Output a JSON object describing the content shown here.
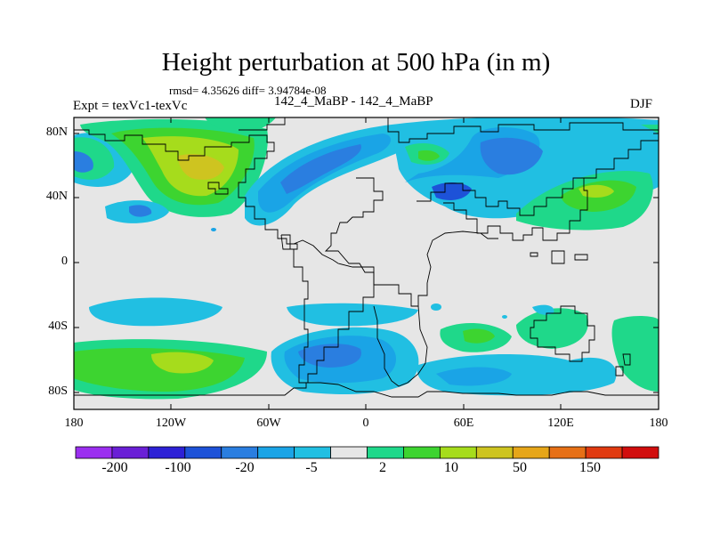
{
  "title": "Height perturbation at 500 hPa (in m)",
  "stats": "rmsd= 4.35626 diff= 3.94784e-08",
  "expt_label": "Expt = texVc1-texVc",
  "runs_label": "142_4_MaBP - 142_4_MaBP",
  "season": "DJF",
  "lat_labels": [
    "80N",
    "40N",
    "0",
    "40S",
    "80S"
  ],
  "lon_labels": [
    "180",
    "120W",
    "60W",
    "0",
    "60E",
    "120E",
    "180"
  ],
  "colorbar": {
    "colors": [
      "#9b2ff0",
      "#6a1fd6",
      "#2d21d6",
      "#1d52d8",
      "#2a7ee0",
      "#1aa4e6",
      "#21bfe2",
      "#e6e6e6",
      "#1fd88a",
      "#3dd430",
      "#a6dc1c",
      "#cec420",
      "#e6a619",
      "#e67016",
      "#e03a10",
      "#d10d0d"
    ],
    "labels": [
      "-200",
      "-100",
      "-20",
      "-5",
      "2",
      "10",
      "50",
      "150"
    ]
  },
  "palette": {
    "neutral": "#e6e6e6",
    "light_blue": "#21bfe2",
    "mid_blue": "#1aa4e6",
    "blue": "#2a7ee0",
    "deep_blue": "#1d52d8",
    "teal": "#1fd88a",
    "green": "#3dd430",
    "yellow_green": "#a6dc1c",
    "olive": "#cec420"
  }
}
